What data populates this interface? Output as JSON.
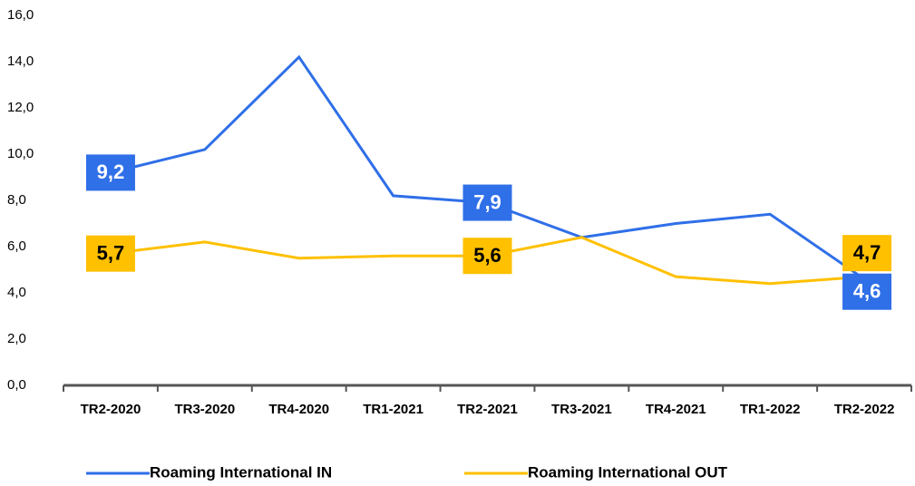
{
  "chart_data": {
    "type": "line",
    "categories": [
      "TR2-2020",
      "TR3-2020",
      "TR4-2020",
      "TR1-2021",
      "TR2-2021",
      "TR3-2021",
      "TR4-2021",
      "TR1-2022",
      "TR2-2022"
    ],
    "series": [
      {
        "name": "Roaming International IN",
        "color": "#2f6fe8",
        "values": [
          9.2,
          10.2,
          14.2,
          8.2,
          7.9,
          6.4,
          7.0,
          7.4,
          4.6
        ],
        "value_labels": [
          "9,2",
          null,
          null,
          null,
          "7,9",
          null,
          null,
          null,
          "4,6"
        ]
      },
      {
        "name": "Roaming International OUT",
        "color": "#ffc000",
        "values": [
          5.7,
          6.2,
          5.5,
          5.6,
          5.6,
          6.4,
          4.7,
          4.4,
          4.7
        ],
        "value_labels": [
          "5,7",
          null,
          null,
          null,
          "5,6",
          null,
          null,
          null,
          "4,7"
        ]
      }
    ],
    "ylim": [
      0,
      16
    ],
    "yticks": [
      {
        "value": 0,
        "label": "0,0"
      },
      {
        "value": 2,
        "label": "2,0"
      },
      {
        "value": 4,
        "label": "4,0"
      },
      {
        "value": 6,
        "label": "6,0"
      },
      {
        "value": 8,
        "label": "8,0"
      },
      {
        "value": 10,
        "label": "10,0"
      },
      {
        "value": 12,
        "label": "12,0"
      },
      {
        "value": 14,
        "label": "14,0"
      },
      {
        "value": 16,
        "label": "16,0"
      }
    ],
    "grid": false,
    "legend": "bottom"
  }
}
